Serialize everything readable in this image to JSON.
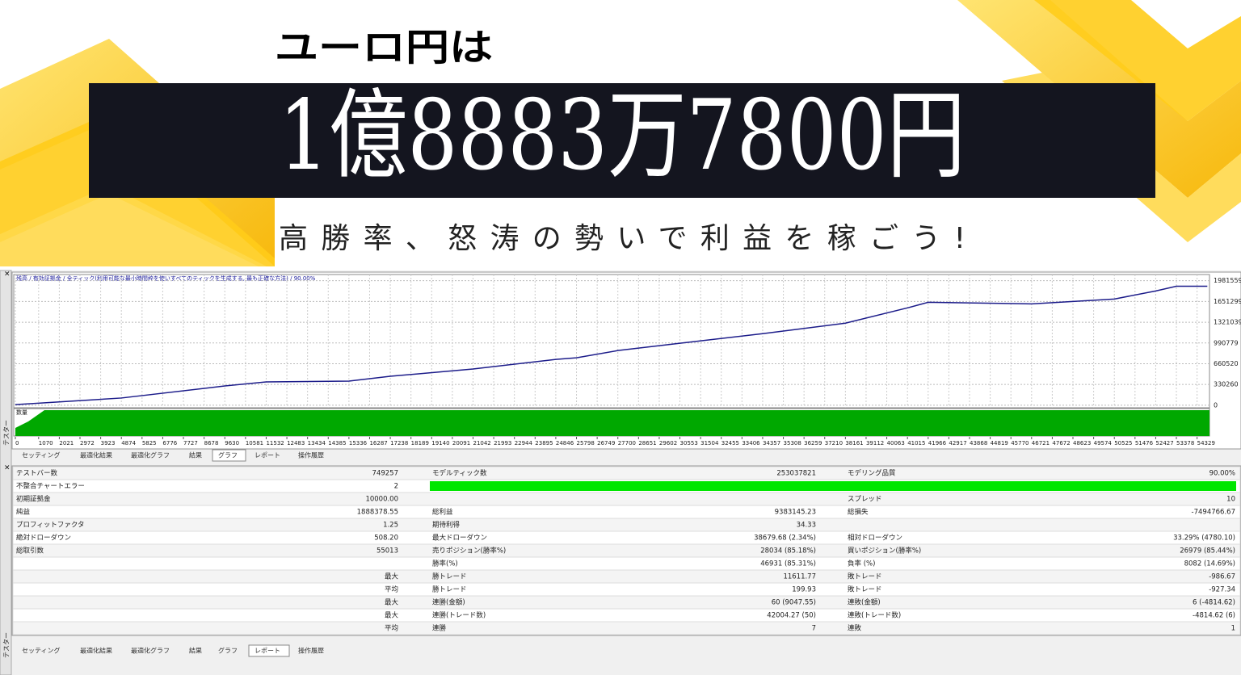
{
  "banner": {
    "headline": "ユーロ円は",
    "amount": "1億8883万7800円",
    "tagline": "高勝率、怒涛の勢いで利益を稼ごう!"
  },
  "window": {
    "side_label": "テスター",
    "tabs_top": [
      "セッティング",
      "最適化結果",
      "最適化グラフ",
      "結果",
      "グラフ",
      "レポート",
      "操作履歴"
    ],
    "active_top": 4,
    "tabs_bottom": [
      "セッティング",
      "最適化結果",
      "最適化グラフ",
      "結果",
      "グラフ",
      "レポート",
      "操作履歴"
    ],
    "active_bottom": 5
  },
  "chart_data": {
    "type": "line",
    "title": "残高 / 有効証拠金 / 全ティック(利用可能な最小時間枠を使いすべてのティックを生成する, 最も正確な方法) / 90.00%",
    "volume_label": "数量",
    "x": [
      0,
      4874,
      9630,
      11532,
      15336,
      17238,
      21042,
      24846,
      25798,
      27700,
      30553,
      34357,
      38161,
      41015,
      41966,
      46721,
      50525,
      52427,
      53378,
      54800
    ],
    "series": [
      {
        "color": "#1c1c8a",
        "values": [
          10000,
          115000,
          307000,
          371000,
          384000,
          461000,
          576000,
          730000,
          755000,
          870000,
          986000,
          1139000,
          1306000,
          1549000,
          1638000,
          1613000,
          1690000,
          1818000,
          1894000,
          1894000
        ]
      }
    ],
    "xlim": [
      0,
      54900
    ],
    "ylim": [
      -40000,
      2080000
    ],
    "xticks": [
      0,
      1070,
      2021,
      2972,
      3923,
      4874,
      5825,
      6776,
      7727,
      8678,
      9630,
      10581,
      11532,
      12483,
      13434,
      14385,
      15336,
      16287,
      17238,
      18189,
      19140,
      20091,
      21042,
      21993,
      22944,
      23895,
      24846,
      25798,
      26749,
      27700,
      28651,
      29602,
      30553,
      31504,
      32455,
      33406,
      34357,
      35308,
      36259,
      37210,
      38161,
      39112,
      40063,
      41015,
      41966,
      42917,
      43868,
      44819,
      45770,
      46721,
      47672,
      48623,
      49574,
      50525,
      51476,
      52427,
      53378,
      54329
    ],
    "yticks": [
      0,
      330260,
      660520,
      990779,
      1321039,
      1651299,
      1981559
    ],
    "grid": true,
    "volume_color": "#00a800"
  },
  "report": {
    "rows": [
      {
        "label1": "テストバー数",
        "value1": "749257",
        "label2": "モデルティック数",
        "value2": "253037821",
        "label3": "モデリング品質",
        "value3": "90.00%"
      },
      {
        "label1": "不整合チャートエラー",
        "value1": "2"
      },
      {
        "label1": "初期証拠金",
        "value1": "10000.00",
        "label3": "スプレッド",
        "value3": "10"
      },
      {
        "label1": "純益",
        "value1": "1888378.55",
        "label2": "総利益",
        "value2": "9383145.23",
        "label3": "総損失",
        "value3": "-7494766.67"
      },
      {
        "label1": "プロフィットファクタ",
        "value1": "1.25",
        "label2": "期待利得",
        "value2": "34.33"
      },
      {
        "label1": "絶対ドローダウン",
        "value1": "508.20",
        "label2": "最大ドローダウン",
        "value2": "38679.68 (2.34%)",
        "label3": "相対ドローダウン",
        "value3": "33.29% (4780.10)"
      },
      {
        "label1": "総取引数",
        "value1": "55013",
        "label2": "売りポジション(勝率%)",
        "value2": "28034 (85.18%)",
        "label3": "買いポジション(勝率%)",
        "value3": "26979 (85.44%)"
      },
      {
        "label2": "勝率(%)",
        "value2": "46931 (85.31%)",
        "label3": "負率 (%)",
        "value3": "8082 (14.69%)"
      },
      {
        "value1": "最大",
        "label2": "勝トレード",
        "value2": "11611.77",
        "label3": "敗トレード",
        "value3": "-986.67"
      },
      {
        "value1": "平均",
        "label2": "勝トレード",
        "value2": "199.93",
        "label3": "敗トレード",
        "value3": "-927.34"
      },
      {
        "value1": "最大",
        "label2": "連勝(金額)",
        "value2": "60 (9047.55)",
        "label3": "連敗(金額)",
        "value3": "6 (-4814.62)"
      },
      {
        "value1": "最大",
        "label2": "連勝(トレード数)",
        "value2": "42004.27 (50)",
        "label3": "連敗(トレード数)",
        "value3": "-4814.62 (6)"
      },
      {
        "value1": "平均",
        "label2": "連勝",
        "value2": "7",
        "label3": "連敗",
        "value3": "1"
      }
    ],
    "quality_bar_color": "#00e600"
  }
}
